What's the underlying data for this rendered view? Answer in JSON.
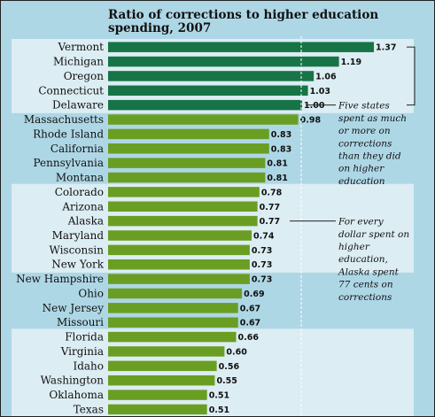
{
  "chart_data": {
    "type": "bar",
    "orientation": "horizontal",
    "title": "Ratio of corrections to higher education spending, 2007",
    "title_lines": [
      "Ratio of corrections to higher education",
      "spending, 2007"
    ],
    "categories": [
      "Vermont",
      "Michigan",
      "Oregon",
      "Connecticut",
      "Delaware",
      "Massachusetts",
      "Rhode Island",
      "California",
      "Pennsylvania",
      "Montana",
      "Colorado",
      "Arizona",
      "Alaska",
      "Maryland",
      "Wisconsin",
      "New York",
      "New Hampshire",
      "Ohio",
      "New Jersey",
      "Missouri",
      "Florida",
      "Virginia",
      "Idaho",
      "Washington",
      "Oklahoma",
      "Texas"
    ],
    "values": [
      1.37,
      1.19,
      1.06,
      1.03,
      1.0,
      0.98,
      0.83,
      0.83,
      0.81,
      0.81,
      0.78,
      0.77,
      0.77,
      0.74,
      0.73,
      0.73,
      0.73,
      0.69,
      0.67,
      0.67,
      0.66,
      0.6,
      0.56,
      0.55,
      0.51,
      0.51
    ],
    "value_labels": [
      "1.37",
      "1.19",
      "1.06",
      "1.03",
      "1.00",
      "0.98",
      "0.83",
      "0.83",
      "0.81",
      "0.81",
      "0.78",
      "0.77",
      "0.77",
      "0.74",
      "0.73",
      "0.73",
      "0.73",
      "0.69",
      "0.67",
      "0.67",
      "0.66",
      "0.60",
      "0.56",
      "0.55",
      "0.51",
      "0.51"
    ],
    "reference_value": 1.0,
    "xlim": [
      0,
      1.5
    ],
    "grid": false,
    "colors": {
      "highlight_bar": "#177446",
      "bar": "#6a9e23",
      "background": "#aed7e6",
      "band": "#dcedf3",
      "reference_line": "#ffffff"
    },
    "highlight_count": 5,
    "bands": [
      [
        0,
        4
      ],
      [
        10,
        15
      ],
      [
        20,
        25
      ]
    ],
    "annotations": [
      {
        "target_rows": [
          0,
          4
        ],
        "lines": [
          "Five states",
          "spent as much",
          "or more on",
          "corrections",
          "than they did",
          "on higher",
          "education"
        ]
      },
      {
        "target_rows": [
          12,
          12
        ],
        "lines": [
          "For every",
          "dollar spent on",
          "higher",
          "education,",
          "Alaska spent",
          "77 cents on",
          "corrections"
        ]
      }
    ]
  }
}
